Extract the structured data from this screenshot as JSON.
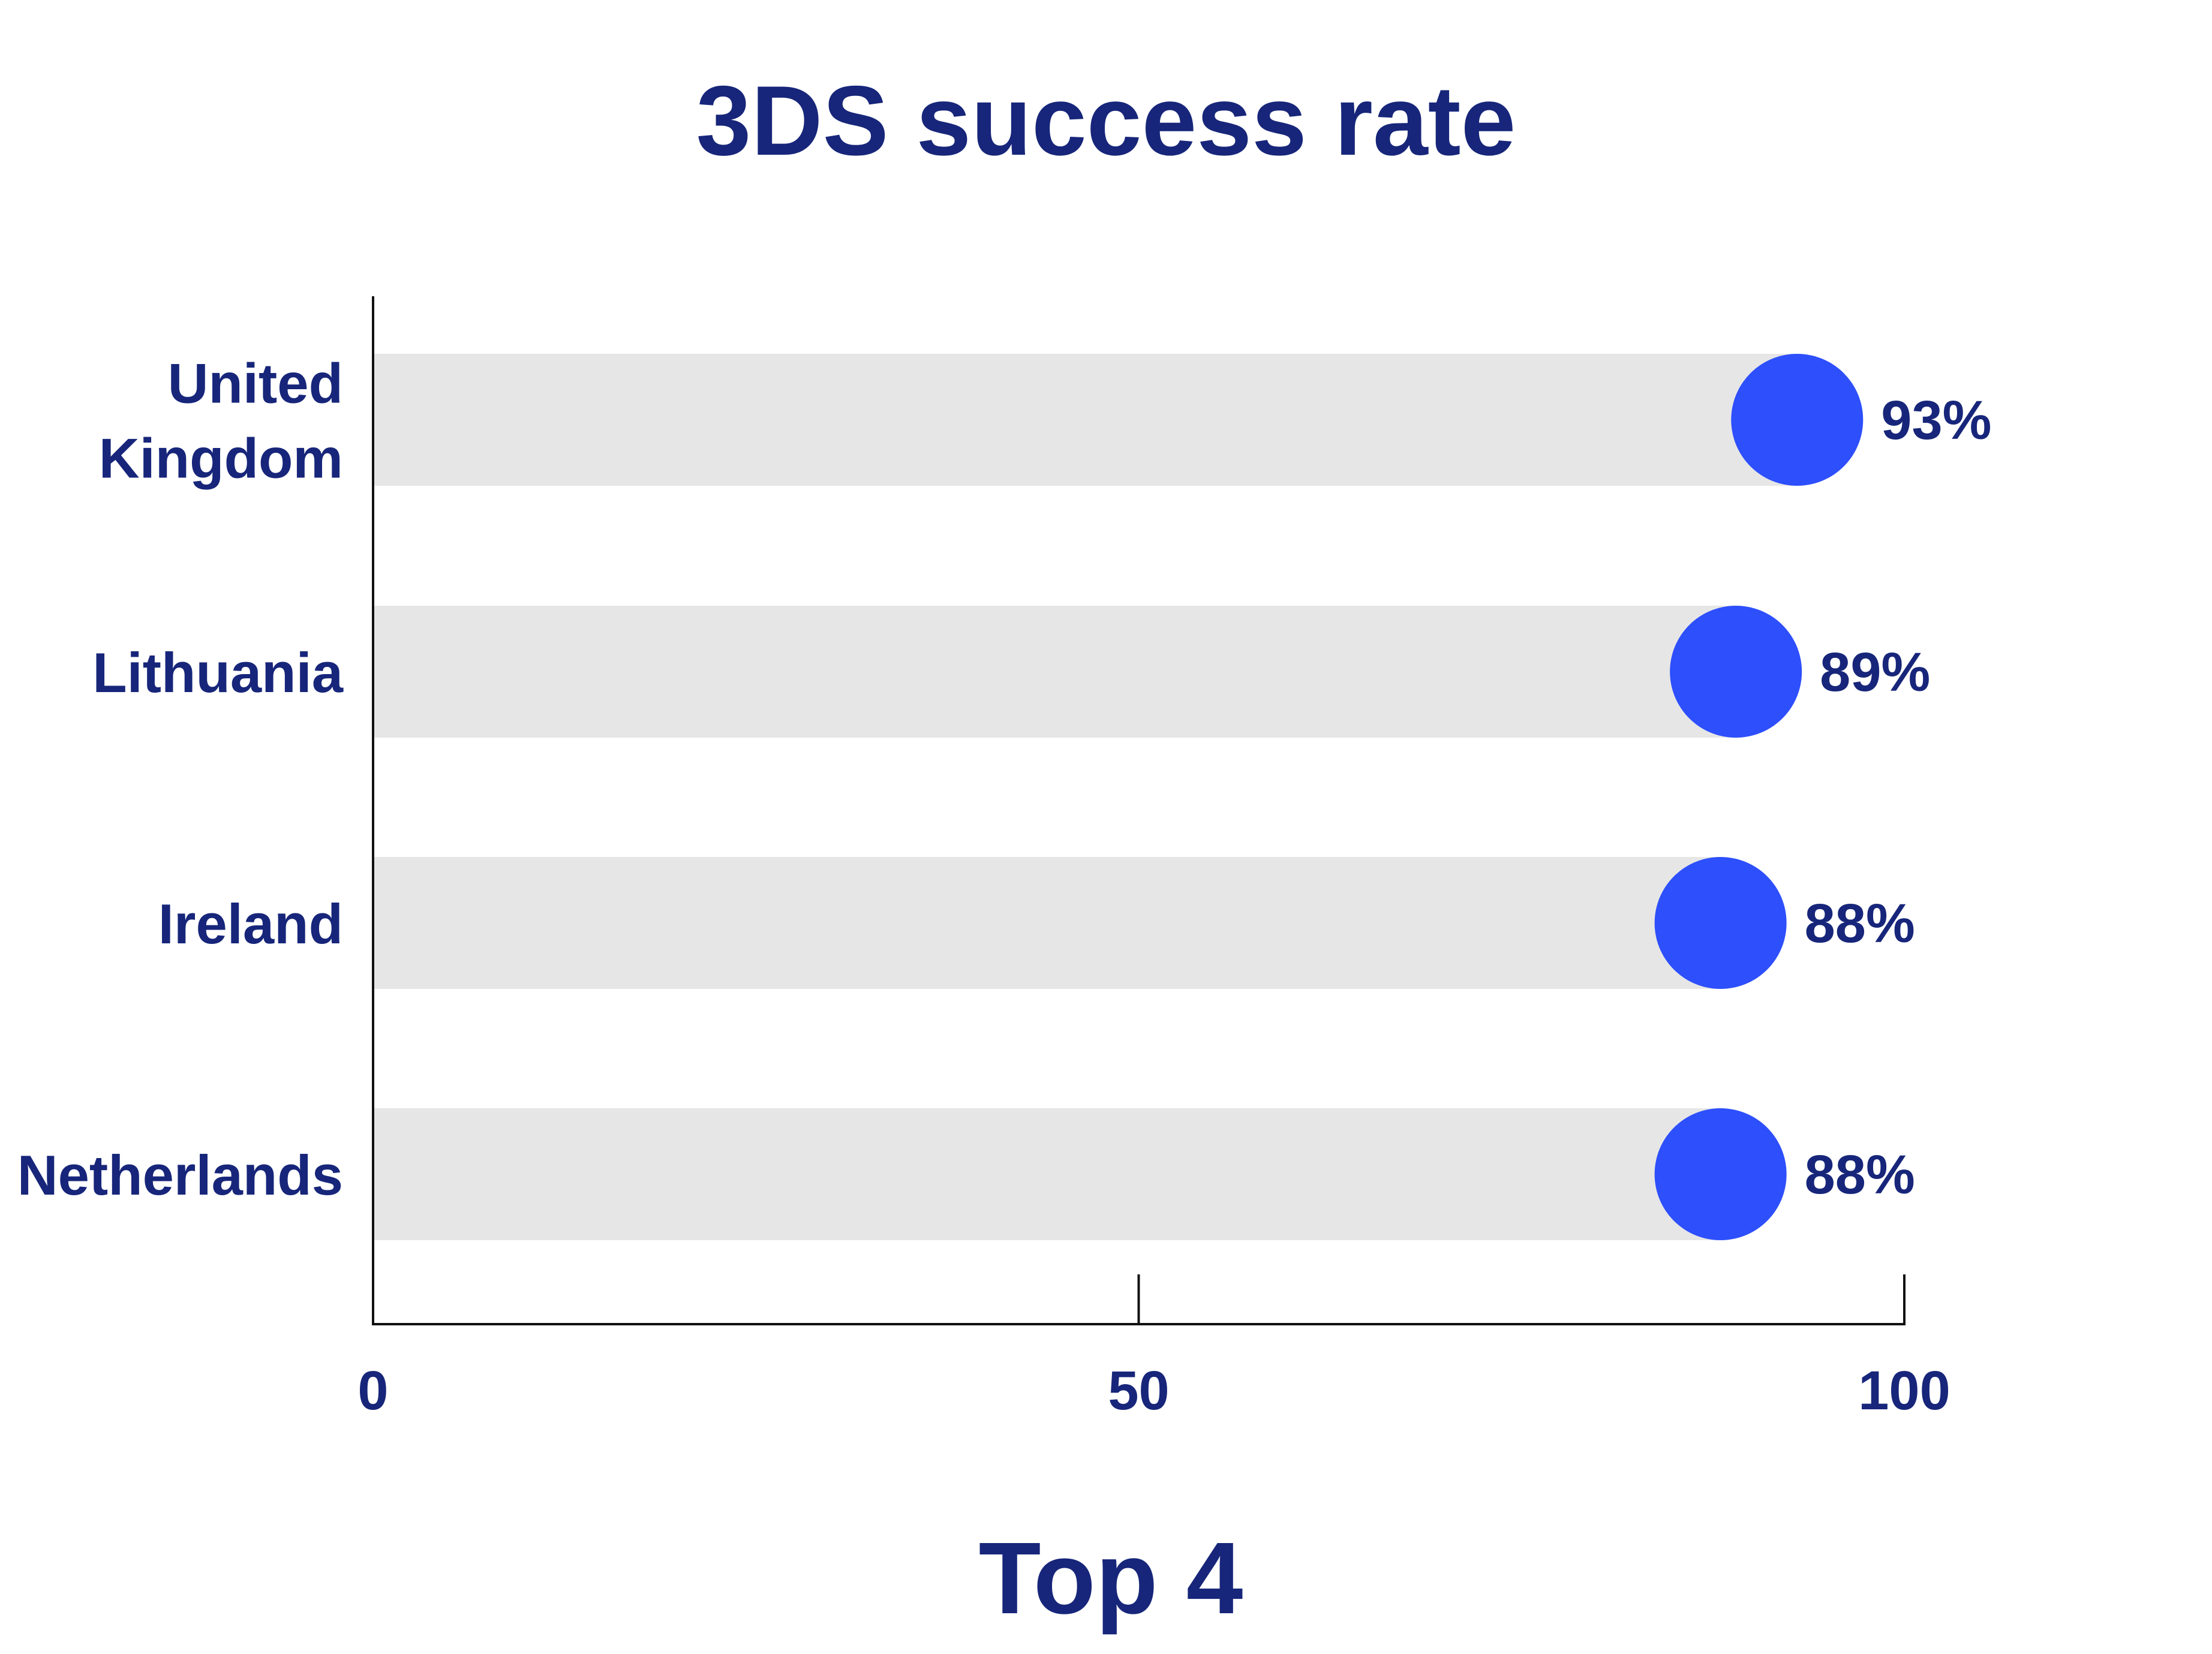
{
  "chart_data": {
    "type": "bar",
    "title": "3DS success rate",
    "xlabel": "Top 4",
    "categories": [
      [
        "United",
        "Kingdom"
      ],
      [
        "Lithuania"
      ],
      [
        "Ireland"
      ],
      [
        "Netherlands"
      ]
    ],
    "values": [
      93,
      89,
      88,
      88
    ],
    "value_labels": [
      "93%",
      "89%",
      "88%",
      "88%"
    ],
    "xlim": [
      0,
      100
    ],
    "xticks": [
      0,
      50,
      100
    ],
    "xtick_labels": [
      "0",
      "50",
      "100"
    ],
    "grid": false,
    "colors": {
      "marker": "#2d4ffc",
      "track": "#e6e6e6",
      "text": "#17267a",
      "axis": "#111111"
    }
  }
}
